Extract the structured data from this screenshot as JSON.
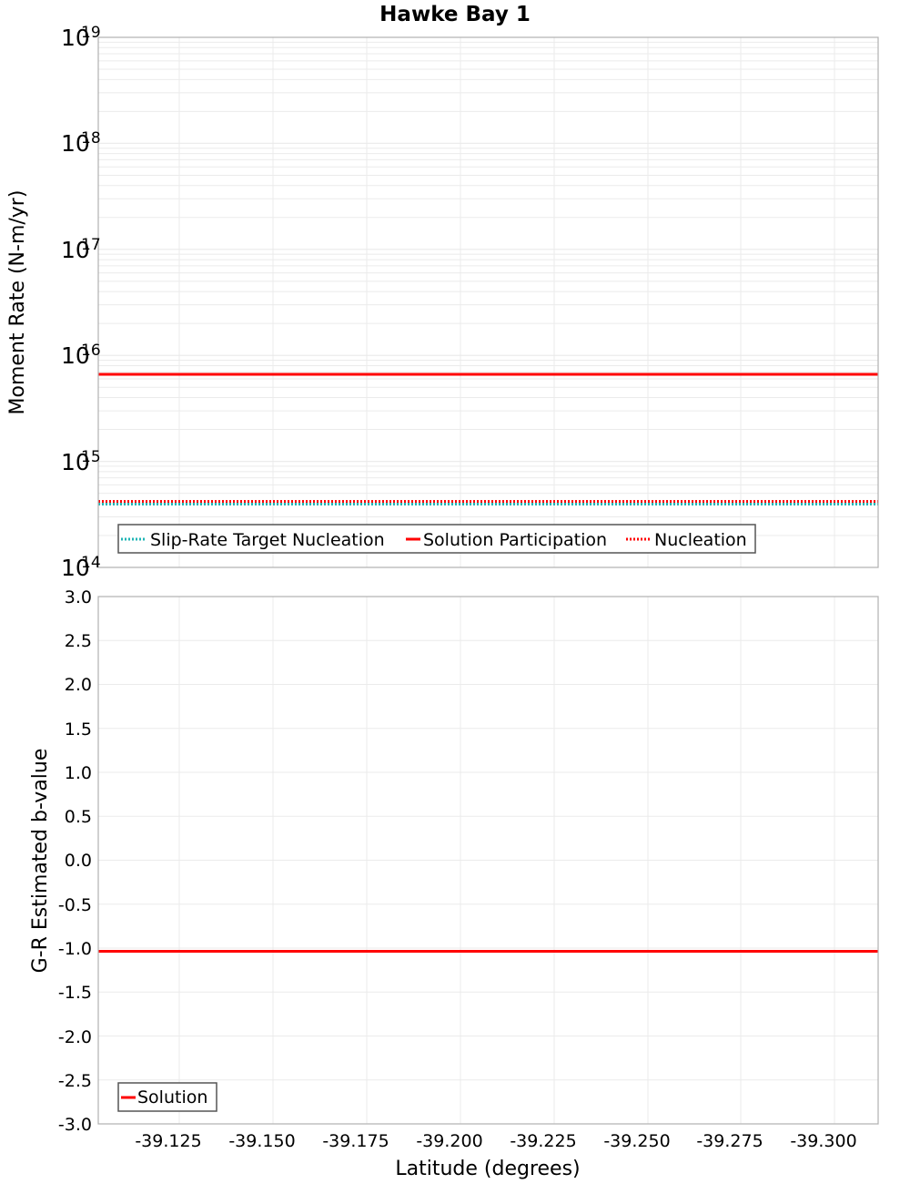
{
  "title": "Hawke Bay 1",
  "colors": {
    "solution_red": "#ff0000",
    "target_teal": "#1fb5b5",
    "grid": "#ebebeb",
    "frame": "#b0b0b0"
  },
  "top_plot": {
    "ylabel": "Moment Rate (N-m/yr)",
    "yticks": [
      {
        "base": "10",
        "exp": "19"
      },
      {
        "base": "10",
        "exp": "18"
      },
      {
        "base": "10",
        "exp": "17"
      },
      {
        "base": "10",
        "exp": "16"
      },
      {
        "base": "10",
        "exp": "15"
      },
      {
        "base": "10",
        "exp": "14"
      }
    ],
    "legend": [
      {
        "label": "Slip-Rate Target Nucleation",
        "style": "dotted",
        "color": "#1fb5b5"
      },
      {
        "label": "Solution Participation",
        "style": "solid",
        "color": "#ff0000"
      },
      {
        "label": "Nucleation",
        "style": "dotted",
        "color": "#ff0000"
      }
    ]
  },
  "bottom_plot": {
    "ylabel": "G-R Estimated b-value",
    "yticks": [
      "3.0",
      "2.5",
      "2.0",
      "1.5",
      "1.0",
      "0.5",
      "0.0",
      "-0.5",
      "-1.0",
      "-1.5",
      "-2.0",
      "-2.5",
      "-3.0"
    ],
    "legend": [
      {
        "label": "Solution",
        "style": "solid",
        "color": "#ff0000"
      }
    ]
  },
  "xaxis": {
    "label": "Latitude (degrees)",
    "ticks": [
      "-39.125",
      "-39.150",
      "-39.175",
      "-39.200",
      "-39.225",
      "-39.250",
      "-39.275",
      "-39.300"
    ]
  },
  "chart_data": [
    {
      "type": "line",
      "title": "Hawke Bay 1",
      "xlabel": "Latitude (degrees)",
      "ylabel": "Moment Rate (N-m/yr)",
      "yscale": "log",
      "ylim": [
        100000000000000.0,
        1e+19
      ],
      "xlim": [
        -39.102,
        -39.326
      ],
      "x_reversed_direction": "values decrease left to right",
      "grid": true,
      "legend_position": "lower-left",
      "x": [
        -39.102,
        -39.326
      ],
      "series": [
        {
          "name": "Slip-Rate Target Nucleation",
          "style": "dotted",
          "color": "#1fb5b5",
          "values": [
            400000000000000.0,
            400000000000000.0
          ]
        },
        {
          "name": "Solution Participation",
          "style": "solid",
          "color": "#ff0000",
          "values": [
            6600000000000000.0,
            6600000000000000.0
          ]
        },
        {
          "name": "Nucleation",
          "style": "dotted",
          "color": "#ff0000",
          "values": [
            420000000000000.0,
            420000000000000.0
          ]
        }
      ]
    },
    {
      "type": "line",
      "title": "",
      "xlabel": "Latitude (degrees)",
      "ylabel": "G-R Estimated b-value",
      "ylim": [
        -3.0,
        3.0
      ],
      "xlim": [
        -39.102,
        -39.326
      ],
      "grid": true,
      "legend_position": "lower-left",
      "x": [
        -39.102,
        -39.326
      ],
      "series": [
        {
          "name": "Solution",
          "style": "solid",
          "color": "#ff0000",
          "values": [
            -1.03,
            -1.03
          ]
        }
      ]
    }
  ]
}
